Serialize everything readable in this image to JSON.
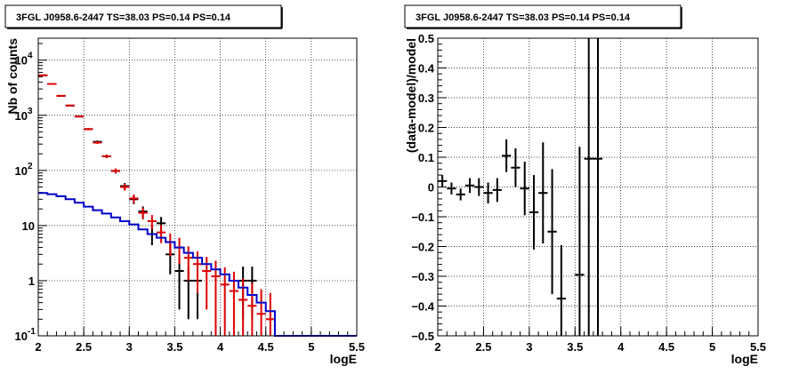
{
  "chart_data": [
    {
      "type": "line",
      "title": "3FGL J0958.6-2447 TS=38.03 PS=0.14 PS=0.14",
      "xlabel": "logE",
      "ylabel": "Nb of counts",
      "xlim": [
        2,
        5.5
      ],
      "ylim": [
        0.1,
        25000
      ],
      "y_scale": "log",
      "grid": true,
      "x_ticks": [
        "2",
        "2.5",
        "3",
        "3.5",
        "4",
        "4.5",
        "5",
        "5.5"
      ],
      "y_ticks": [
        {
          "value": 0.1,
          "label": "10",
          "exp": "-1"
        },
        {
          "value": 1,
          "label": "1",
          "exp": ""
        },
        {
          "value": 10,
          "label": "10",
          "exp": ""
        },
        {
          "value": 100,
          "label": "10",
          "exp": "2"
        },
        {
          "value": 1000,
          "label": "10",
          "exp": "3"
        },
        {
          "value": 10000,
          "label": "10",
          "exp": "4"
        }
      ],
      "series": [
        {
          "color": "#000000",
          "style": "points-errorbars",
          "x": [
            2.05,
            2.15,
            2.25,
            2.35,
            2.45,
            2.55,
            2.65,
            2.75,
            2.85,
            2.95,
            3.05,
            3.15,
            3.25,
            3.35,
            3.45,
            3.55,
            3.65,
            3.75,
            4.25,
            4.35
          ],
          "y": [
            5300,
            3700,
            2250,
            1500,
            950,
            560,
            330,
            180,
            98,
            52,
            30,
            18,
            7,
            11,
            3,
            1.5,
            1,
            1,
            1,
            1
          ],
          "err": [
            73,
            61,
            47,
            39,
            31,
            24,
            18,
            13,
            10,
            7,
            5.5,
            4.2,
            2.6,
            3.3,
            1.7,
            1.2,
            0.8,
            0.8,
            0.8,
            0.8
          ]
        },
        {
          "color": "#dd0000",
          "style": "points-errorbars",
          "x": [
            2.05,
            2.15,
            2.25,
            2.35,
            2.45,
            2.55,
            2.65,
            2.75,
            2.85,
            2.95,
            3.05,
            3.15,
            3.25,
            3.35,
            3.45,
            3.55,
            3.65,
            3.75,
            3.85,
            3.95,
            4.05,
            4.15,
            4.25,
            4.35,
            4.45,
            4.55
          ],
          "y": [
            5300,
            3700,
            2250,
            1500,
            950,
            560,
            320,
            180,
            98,
            50,
            31,
            17,
            12,
            7.5,
            5,
            4,
            2.6,
            2,
            1.5,
            1.2,
            0.85,
            0.65,
            0.45,
            0.35,
            0.25,
            0.2
          ],
          "err": [
            73,
            61,
            47,
            39,
            31,
            24,
            18,
            13,
            10,
            7,
            5.5,
            4.1,
            3.5,
            2.7,
            2.2,
            2,
            1.6,
            1.4,
            1.2,
            1.1,
            0.9,
            0.8,
            0.65,
            0.55,
            0.45,
            0.4
          ]
        },
        {
          "color": "#0000cc",
          "style": "step",
          "x": [
            2.05,
            2.15,
            2.25,
            2.35,
            2.45,
            2.55,
            2.65,
            2.75,
            2.85,
            2.95,
            3.05,
            3.15,
            3.25,
            3.35,
            3.45,
            3.55,
            3.65,
            3.75,
            3.85,
            3.95,
            4.05,
            4.15,
            4.25,
            4.35,
            4.45,
            4.55,
            4.65,
            4.75,
            4.85,
            4.95,
            5.05,
            5.15,
            5.25,
            5.35,
            5.45
          ],
          "y": [
            39,
            37,
            34,
            30,
            26,
            22,
            19,
            16.5,
            14,
            12,
            10.5,
            8.5,
            7,
            6,
            5,
            4,
            3.2,
            2.6,
            2,
            1.6,
            1.3,
            1.0,
            0.75,
            0.55,
            0.4,
            0.28,
            0.1,
            0.1,
            0.1,
            0.1,
            0.1,
            0.1,
            0.1,
            0.1,
            0.1
          ]
        }
      ]
    },
    {
      "type": "scatter",
      "title": "3FGL J0958.6-2447 TS=38.03 PS=0.14 PS=0.14",
      "xlabel": "logE",
      "ylabel": "(data-model)/model",
      "xlim": [
        2,
        5.5
      ],
      "ylim": [
        -0.5,
        0.5
      ],
      "grid": true,
      "x_ticks": [
        "2",
        "2.5",
        "3",
        "3.5",
        "4",
        "4.5",
        "5",
        "5.5"
      ],
      "y_ticks": [
        "−0.5",
        "−0.4",
        "−0.3",
        "−0.2",
        "−0.1",
        "0",
        "0.1",
        "0.2",
        "0.3",
        "0.4",
        "0.5"
      ],
      "series": [
        {
          "color": "#000000",
          "style": "points-errorbars",
          "x": [
            2.05,
            2.15,
            2.25,
            2.35,
            2.45,
            2.55,
            2.65,
            2.75,
            2.85,
            2.95,
            3.05,
            3.15,
            3.25,
            3.35,
            3.55,
            3.65,
            3.75
          ],
          "y": [
            0.02,
            -0.005,
            -0.025,
            0.005,
            0.0,
            -0.02,
            -0.01,
            0.105,
            0.065,
            -0.005,
            -0.085,
            -0.02,
            -0.15,
            -0.375,
            -0.295,
            0.095,
            0.095
          ],
          "err": [
            0.02,
            0.02,
            0.02,
            0.025,
            0.03,
            0.035,
            0.04,
            0.055,
            0.065,
            0.09,
            0.125,
            0.17,
            0.21,
            0.18,
            0.43,
            0.7,
            0.7
          ]
        }
      ]
    }
  ]
}
